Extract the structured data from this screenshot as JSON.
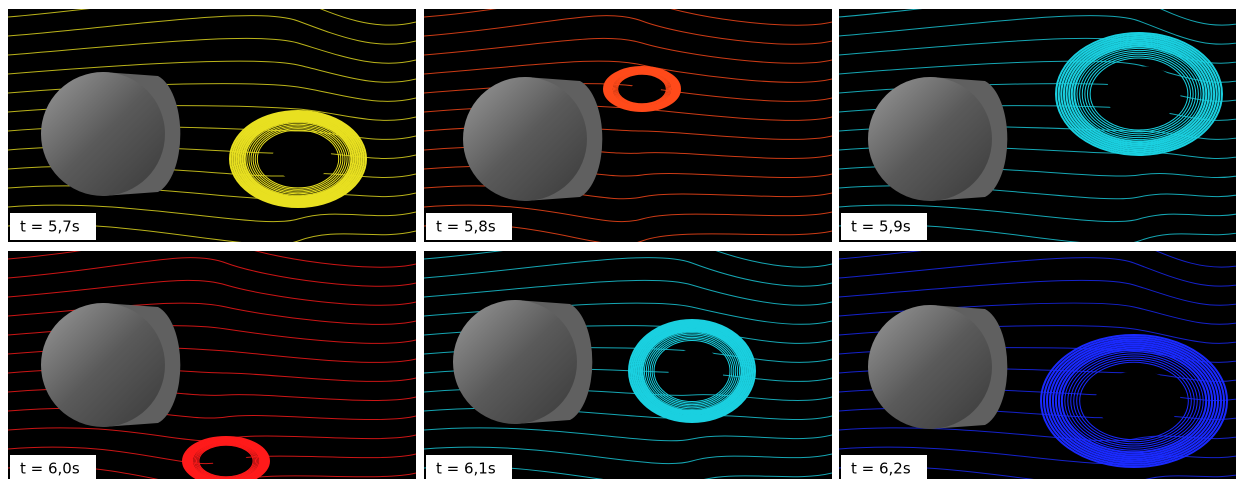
{
  "panels": [
    {
      "label": "t = 5,7s",
      "color": "#e8e020"
    },
    {
      "label": "t = 5,8s",
      "color": "#ff4a1a"
    },
    {
      "label": "t = 5,9s",
      "color": "#1ad0e0"
    },
    {
      "label": "t = 6,0s",
      "color": "#ff1a1a"
    },
    {
      "label": "t = 6,1s",
      "color": "#1ad0e0"
    },
    {
      "label": "t = 6,2s",
      "color": "#1a2aff"
    }
  ]
}
